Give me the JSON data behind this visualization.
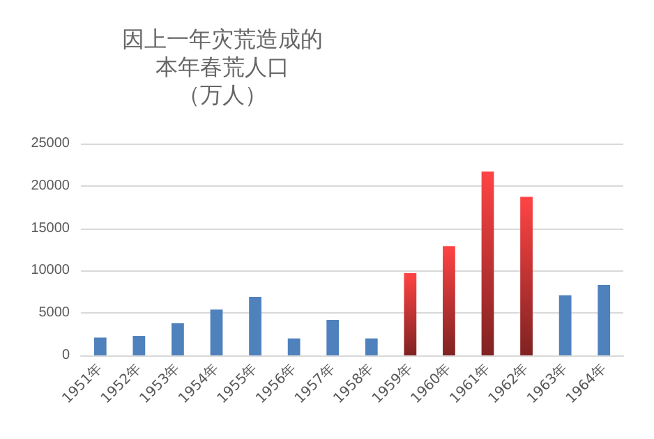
{
  "chart_data": {
    "type": "bar",
    "title": "因上一年灾荒造成的本年春荒人口",
    "subtitle": "（万人）",
    "categories": [
      "1951年",
      "1952年",
      "1953年",
      "1954年",
      "1955年",
      "1956年",
      "1957年",
      "1958年",
      "1959年",
      "1960年",
      "1961年",
      "1962年",
      "1963年",
      "1964年"
    ],
    "values": [
      2100,
      2300,
      3800,
      5400,
      6900,
      2000,
      4200,
      2000,
      9700,
      12900,
      21700,
      18700,
      7100,
      8300
    ],
    "colors": [
      "#4f81bd",
      "#4f81bd",
      "#4f81bd",
      "#4f81bd",
      "#4f81bd",
      "#4f81bd",
      "#4f81bd",
      "#4f81bd",
      "#ff4444",
      "#ff4444",
      "#ff4444",
      "#ff4444",
      "#4f81bd",
      "#4f81bd"
    ],
    "ylim": [
      0,
      25000
    ],
    "yticks": [
      0,
      5000,
      10000,
      15000,
      20000,
      25000
    ],
    "grid": "y"
  }
}
